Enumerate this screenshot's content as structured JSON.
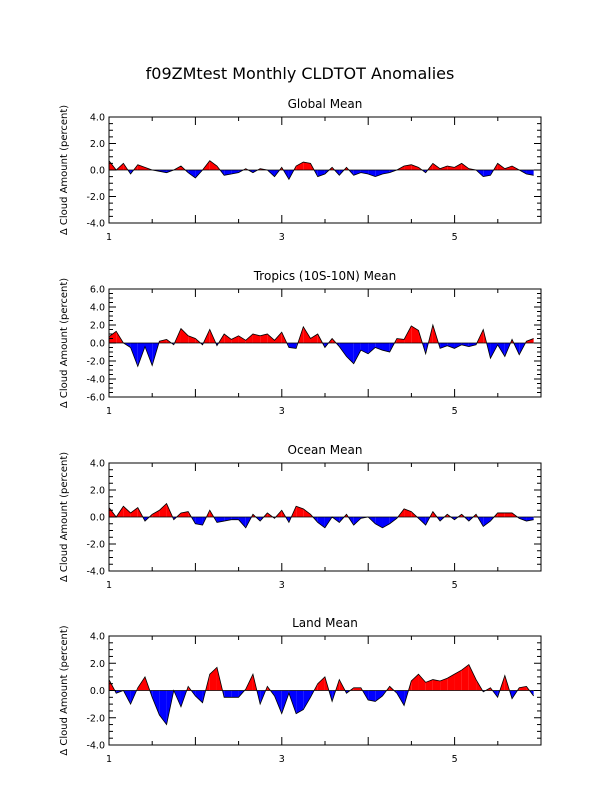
{
  "figure": {
    "title": "f09ZMtest Monthly CLDTOT Anomalies"
  },
  "colors": {
    "positive": "#ff0000",
    "negative": "#0000ff",
    "axis": "#000000"
  },
  "chart_data": [
    {
      "type": "area",
      "title": "Global Mean",
      "ylabel": "Δ Cloud Amount (percent)",
      "ylim": [
        -4,
        4
      ],
      "yticks": [
        4,
        2,
        0,
        -2,
        -4
      ],
      "ytick_labels": [
        "4.0",
        "2.0",
        "0.0",
        "-2.0",
        "-4.0"
      ],
      "xlim": [
        1,
        6
      ],
      "xticks": [
        1,
        3,
        5
      ],
      "xtick_labels": [
        "1",
        "3",
        "5"
      ],
      "x_start": 1,
      "x_step": 0.0833,
      "values": [
        0.7,
        0.0,
        0.5,
        -0.3,
        0.4,
        0.2,
        0.0,
        -0.1,
        -0.2,
        0.0,
        0.3,
        -0.2,
        -0.6,
        0.0,
        0.7,
        0.3,
        -0.4,
        -0.3,
        -0.2,
        0.1,
        -0.2,
        0.1,
        0.0,
        -0.5,
        0.2,
        -0.7,
        0.3,
        0.6,
        0.5,
        -0.5,
        -0.3,
        0.2,
        -0.4,
        0.2,
        -0.4,
        -0.2,
        -0.3,
        -0.5,
        -0.3,
        -0.2,
        0.0,
        0.3,
        0.4,
        0.2,
        -0.2,
        0.5,
        0.1,
        0.3,
        0.2,
        0.5,
        0.1,
        0.0,
        -0.5,
        -0.4,
        0.5,
        0.1,
        0.3,
        0.0,
        -0.3,
        -0.4
      ]
    },
    {
      "type": "area",
      "title": "Tropics (10S-10N) Mean",
      "ylabel": "Δ Cloud Amount (percent)",
      "ylim": [
        -6,
        6
      ],
      "yticks": [
        6,
        4,
        2,
        0,
        -2,
        -4,
        -6
      ],
      "ytick_labels": [
        "6.0",
        "4.0",
        "2.0",
        "0.0",
        "-2.0",
        "-4.0",
        "-6.0"
      ],
      "xlim": [
        1,
        6
      ],
      "xticks": [
        1,
        3,
        5
      ],
      "xtick_labels": [
        "1",
        "3",
        "5"
      ],
      "x_start": 1,
      "x_step": 0.0833,
      "values": [
        0.7,
        1.3,
        0.0,
        -0.5,
        -2.6,
        -0.4,
        -2.5,
        0.2,
        0.4,
        -0.2,
        1.6,
        0.8,
        0.5,
        -0.2,
        1.5,
        -0.3,
        1.0,
        0.4,
        0.8,
        0.3,
        1.0,
        0.8,
        1.0,
        0.3,
        1.2,
        -0.5,
        -0.6,
        1.8,
        0.5,
        1.0,
        -0.5,
        0.5,
        -0.4,
        -1.5,
        -2.3,
        -0.8,
        -1.2,
        -0.5,
        -0.8,
        -1.0,
        0.5,
        0.4,
        1.9,
        1.4,
        -1.2,
        2.0,
        -0.6,
        -0.3,
        -0.6,
        -0.2,
        -0.4,
        -0.2,
        1.5,
        -1.7,
        -0.2,
        -1.5,
        0.4,
        -1.3,
        0.2,
        0.5
      ]
    },
    {
      "type": "area",
      "title": "Ocean Mean",
      "ylabel": "Δ Cloud Amount (percent)",
      "ylim": [
        -4,
        4
      ],
      "yticks": [
        4,
        2,
        0,
        -2,
        -4
      ],
      "ytick_labels": [
        "4.0",
        "2.0",
        "0.0",
        "-2.0",
        "-4.0"
      ],
      "xlim": [
        1,
        6
      ],
      "xticks": [
        1,
        3,
        5
      ],
      "xtick_labels": [
        "1",
        "3",
        "5"
      ],
      "x_start": 1,
      "x_step": 0.0833,
      "values": [
        0.7,
        0.0,
        0.8,
        0.3,
        0.7,
        -0.3,
        0.2,
        0.5,
        1.0,
        -0.2,
        0.3,
        0.4,
        -0.5,
        -0.6,
        0.5,
        -0.4,
        -0.3,
        -0.2,
        -0.2,
        -0.8,
        0.2,
        -0.3,
        0.3,
        -0.1,
        0.5,
        -0.4,
        0.8,
        0.6,
        0.2,
        -0.4,
        -0.8,
        0.0,
        -0.4,
        0.2,
        -0.6,
        -0.1,
        0.0,
        -0.5,
        -0.8,
        -0.5,
        -0.1,
        0.6,
        0.4,
        -0.1,
        -0.6,
        0.4,
        -0.3,
        0.2,
        -0.2,
        0.2,
        -0.3,
        0.2,
        -0.7,
        -0.3,
        0.3,
        0.3,
        0.3,
        -0.1,
        -0.3,
        -0.2
      ]
    },
    {
      "type": "area",
      "title": "Land Mean",
      "ylabel": "Δ Cloud Amount (percent)",
      "ylim": [
        -4,
        4
      ],
      "yticks": [
        4,
        2,
        0,
        -2,
        -4
      ],
      "ytick_labels": [
        "4.0",
        "2.0",
        "0.0",
        "-2.0",
        "-4.0"
      ],
      "xlim": [
        1,
        6
      ],
      "xticks": [
        1,
        3,
        5
      ],
      "xtick_labels": [
        "1",
        "3",
        "5"
      ],
      "x_start": 1,
      "x_step": 0.0833,
      "values": [
        0.8,
        -0.2,
        0.0,
        -1.0,
        0.2,
        1.0,
        -0.5,
        -1.8,
        -2.5,
        0.0,
        -1.2,
        0.3,
        -0.4,
        -0.9,
        1.2,
        1.7,
        -0.5,
        -0.5,
        -0.5,
        0.1,
        1.2,
        -1.0,
        0.3,
        -0.4,
        -1.7,
        -0.2,
        -1.7,
        -1.4,
        -0.5,
        0.5,
        1.0,
        -0.8,
        0.8,
        -0.2,
        0.2,
        0.2,
        -0.7,
        -0.8,
        -0.4,
        0.3,
        -0.2,
        -1.1,
        0.7,
        1.2,
        0.6,
        0.8,
        0.7,
        0.9,
        1.2,
        1.5,
        1.9,
        0.8,
        -0.1,
        0.2,
        -0.5,
        1.1,
        -0.6,
        0.2,
        0.3,
        -0.4
      ]
    }
  ]
}
